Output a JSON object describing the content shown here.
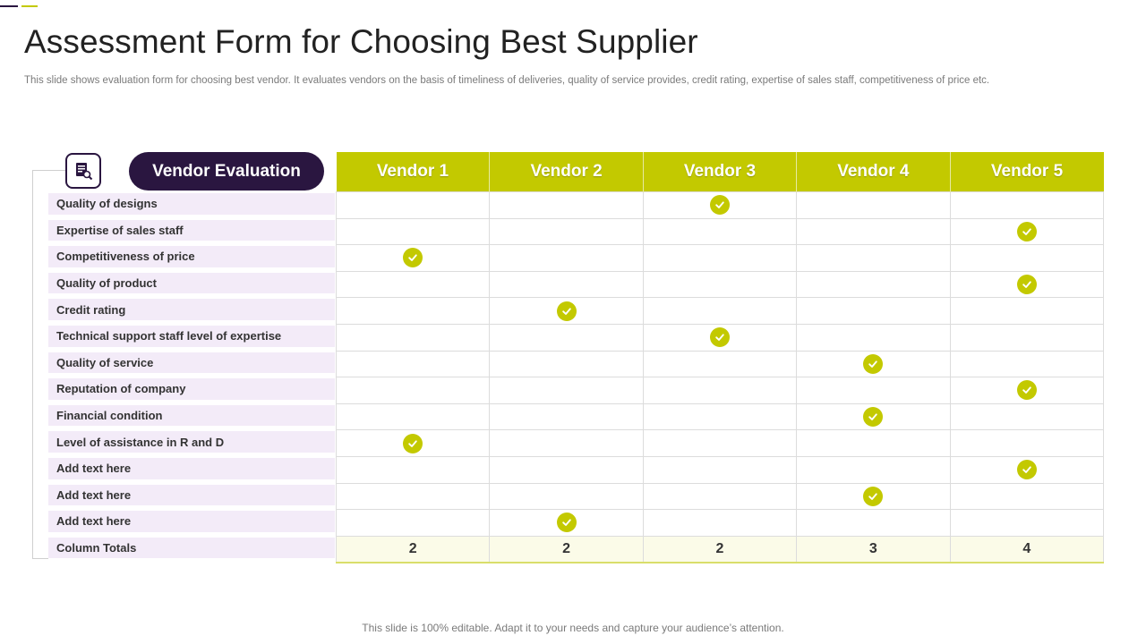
{
  "title": "Assessment Form for Choosing Best Supplier",
  "subtitle": "This slide shows evaluation form for choosing best vendor. It evaluates vendors on the basis of timeliness of deliveries, quality of service provides, credit rating, expertise of sales staff, competitiveness of price etc.",
  "header": {
    "label": "Vendor Evaluation",
    "icon": "document-search-icon"
  },
  "vendors": [
    "Vendor 1",
    "Vendor 2",
    "Vendor 3",
    "Vendor 4",
    "Vendor 5"
  ],
  "criteria": [
    {
      "label": "Quality of designs",
      "selected_vendor": 3
    },
    {
      "label": "Expertise of sales staff",
      "selected_vendor": 5
    },
    {
      "label": "Competitiveness of price",
      "selected_vendor": 1
    },
    {
      "label": "Quality of product",
      "selected_vendor": 5
    },
    {
      "label": "Credit rating",
      "selected_vendor": 2
    },
    {
      "label": "Technical support staff level of expertise",
      "selected_vendor": 3
    },
    {
      "label": "Quality of service",
      "selected_vendor": 4
    },
    {
      "label": "Reputation of company",
      "selected_vendor": 5
    },
    {
      "label": "Financial condition",
      "selected_vendor": 4
    },
    {
      "label": "Level of assistance in R and D",
      "selected_vendor": 1
    },
    {
      "label": "Add text here",
      "selected_vendor": 5
    },
    {
      "label": "Add text here",
      "selected_vendor": 4
    },
    {
      "label": "Add text here",
      "selected_vendor": 2
    }
  ],
  "totals": {
    "label": "Column Totals",
    "values": [
      "2",
      "2",
      "2",
      "3",
      "4"
    ]
  },
  "footer": "This slide is 100% editable. Adapt it to your needs and capture your audience’s attention.",
  "colors": {
    "accent": "#c3c900",
    "dark": "#2a1640",
    "criteria_bg": "#f3ebf8"
  }
}
